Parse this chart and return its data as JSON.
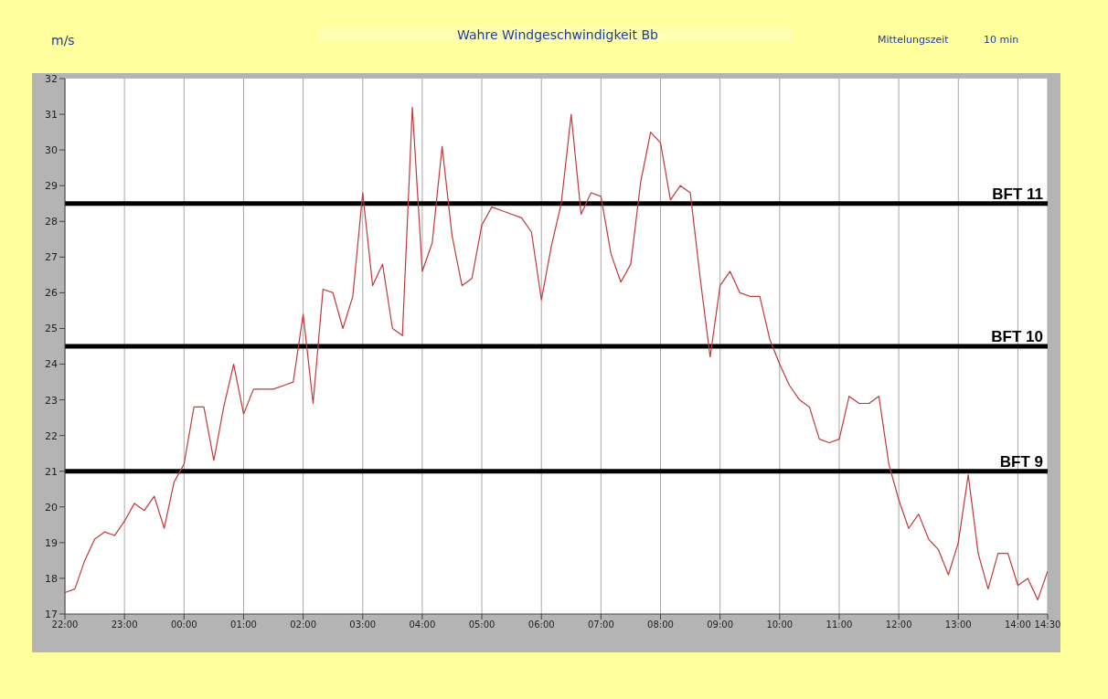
{
  "chart_data": {
    "type": "line",
    "title": "Wahre Windgeschwindigkeit Bb",
    "ylabel": "m/s",
    "annotations": [
      "Mittelungszeit",
      "10 min"
    ],
    "x": [
      "2000-01-01T22:00",
      "2000-01-01T22:10",
      "2000-01-01T22:20",
      "2000-01-01T22:30",
      "2000-01-01T22:40",
      "2000-01-01T22:50",
      "2000-01-01T23:00",
      "2000-01-01T23:10",
      "2000-01-01T23:20",
      "2000-01-01T23:30",
      "2000-01-01T23:40",
      "2000-01-01T23:50",
      "2000-01-02T00:00",
      "2000-01-02T00:10",
      "2000-01-02T00:20",
      "2000-01-02T00:30",
      "2000-01-02T00:40",
      "2000-01-02T00:50",
      "2000-01-02T01:00",
      "2000-01-02T01:10",
      "2000-01-02T01:20",
      "2000-01-02T01:30",
      "2000-01-02T01:40",
      "2000-01-02T01:50",
      "2000-01-02T02:00",
      "2000-01-02T02:10",
      "2000-01-02T02:20",
      "2000-01-02T02:30",
      "2000-01-02T02:40",
      "2000-01-02T02:50",
      "2000-01-02T03:00",
      "2000-01-02T03:10",
      "2000-01-02T03:20",
      "2000-01-02T03:30",
      "2000-01-02T03:40",
      "2000-01-02T03:50",
      "2000-01-02T04:00",
      "2000-01-02T04:10",
      "2000-01-02T04:20",
      "2000-01-02T04:30",
      "2000-01-02T04:40",
      "2000-01-02T04:50",
      "2000-01-02T05:00",
      "2000-01-02T05:10",
      "2000-01-02T05:20",
      "2000-01-02T05:30",
      "2000-01-02T05:40",
      "2000-01-02T05:50",
      "2000-01-02T06:00",
      "2000-01-02T06:10",
      "2000-01-02T06:20",
      "2000-01-02T06:30",
      "2000-01-02T06:40",
      "2000-01-02T06:50",
      "2000-01-02T07:00",
      "2000-01-02T07:10",
      "2000-01-02T07:20",
      "2000-01-02T07:30",
      "2000-01-02T07:40",
      "2000-01-02T07:50",
      "2000-01-02T08:00",
      "2000-01-02T08:10",
      "2000-01-02T08:20",
      "2000-01-02T08:30",
      "2000-01-02T08:40",
      "2000-01-02T08:50",
      "2000-01-02T09:00",
      "2000-01-02T09:10",
      "2000-01-02T09:20",
      "2000-01-02T09:30",
      "2000-01-02T09:40",
      "2000-01-02T09:50",
      "2000-01-02T10:00",
      "2000-01-02T10:10",
      "2000-01-02T10:20",
      "2000-01-02T10:30",
      "2000-01-02T10:40",
      "2000-01-02T10:50",
      "2000-01-02T11:00",
      "2000-01-02T11:10",
      "2000-01-02T11:20",
      "2000-01-02T11:30",
      "2000-01-02T11:40",
      "2000-01-02T11:50",
      "2000-01-02T12:00",
      "2000-01-02T12:10",
      "2000-01-02T12:20",
      "2000-01-02T12:30",
      "2000-01-02T12:40",
      "2000-01-02T12:50",
      "2000-01-02T13:00",
      "2000-01-02T13:10",
      "2000-01-02T13:20",
      "2000-01-02T13:30",
      "2000-01-02T13:40",
      "2000-01-02T13:50",
      "2000-01-02T14:00",
      "2000-01-02T14:10",
      "2000-01-02T14:20",
      "2000-01-02T14:30"
    ],
    "series": [
      {
        "color": "#c0393b",
        "values": [
          17.6,
          17.7,
          18.5,
          19.1,
          19.3,
          19.2,
          19.6,
          20.1,
          19.9,
          20.3,
          19.4,
          20.7,
          21.2,
          22.8,
          22.8,
          21.3,
          22.8,
          24.0,
          22.6,
          23.3,
          23.3,
          23.3,
          23.4,
          23.5,
          25.4,
          22.9,
          26.1,
          26.0,
          25.0,
          25.9,
          28.8,
          26.2,
          26.8,
          25.0,
          24.8,
          31.2,
          26.6,
          27.4,
          30.1,
          27.6,
          26.2,
          26.4,
          27.9,
          28.4,
          28.3,
          28.2,
          28.1,
          27.7,
          25.8,
          27.3,
          28.5,
          31.0,
          28.2,
          28.8,
          28.7,
          27.1,
          26.3,
          26.8,
          29.1,
          30.5,
          30.2,
          28.6,
          29.0,
          28.8,
          26.4,
          24.2,
          26.2,
          26.6,
          26.0,
          25.9,
          25.9,
          24.7,
          24.0,
          23.4,
          23.0,
          22.8,
          21.9,
          21.8,
          21.9,
          23.1,
          22.9,
          22.9,
          23.1,
          21.2,
          20.2,
          19.4,
          19.8,
          19.1,
          18.8,
          18.1,
          19.0,
          20.9,
          18.7,
          17.7,
          18.7,
          18.7,
          17.8,
          18.0,
          17.4,
          18.2
        ]
      }
    ],
    "xlim": [
      "2000-01-01T22:00",
      "2000-01-02T14:30"
    ],
    "xticks": [
      {
        "value": "2000-01-01T22:00",
        "label": "22:00"
      },
      {
        "value": "2000-01-01T23:00",
        "label": "23:00"
      },
      {
        "value": "2000-01-02T00:00",
        "label": "00:00"
      },
      {
        "value": "2000-01-02T01:00",
        "label": "01:00"
      },
      {
        "value": "2000-01-02T02:00",
        "label": "02:00"
      },
      {
        "value": "2000-01-02T03:00",
        "label": "03:00"
      },
      {
        "value": "2000-01-02T04:00",
        "label": "04:00"
      },
      {
        "value": "2000-01-02T05:00",
        "label": "05:00"
      },
      {
        "value": "2000-01-02T06:00",
        "label": "06:00"
      },
      {
        "value": "2000-01-02T07:00",
        "label": "07:00"
      },
      {
        "value": "2000-01-02T08:00",
        "label": "08:00"
      },
      {
        "value": "2000-01-02T09:00",
        "label": "09:00"
      },
      {
        "value": "2000-01-02T10:00",
        "label": "10:00"
      },
      {
        "value": "2000-01-02T11:00",
        "label": "11:00"
      },
      {
        "value": "2000-01-02T12:00",
        "label": "12:00"
      },
      {
        "value": "2000-01-02T13:00",
        "label": "13:00"
      },
      {
        "value": "2000-01-02T14:00",
        "label": "14:00"
      },
      {
        "value": "2000-01-02T14:30",
        "label": "14:30"
      }
    ],
    "ylim": [
      17,
      32
    ],
    "yticks": [
      17,
      18,
      19,
      20,
      21,
      22,
      23,
      24,
      25,
      26,
      27,
      28,
      29,
      30,
      31,
      32
    ],
    "grid": true,
    "ref_lines": [
      {
        "axis": "y",
        "value": 28.5,
        "label": "BFT 11",
        "color": "#000000"
      },
      {
        "axis": "y",
        "value": 24.5,
        "label": "BFT 10",
        "color": "#000000"
      },
      {
        "axis": "y",
        "value": 21,
        "label": "BFT 9",
        "color": "#000000"
      }
    ]
  }
}
